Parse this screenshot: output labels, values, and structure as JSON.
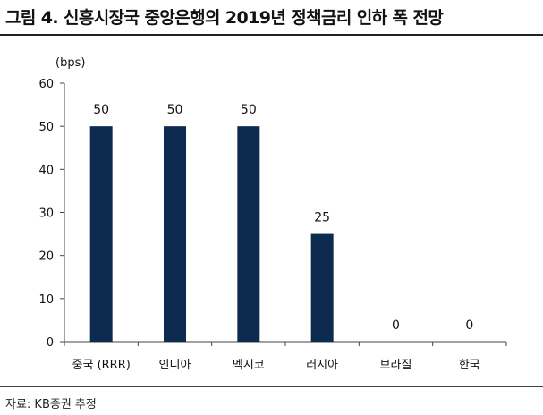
{
  "figure": {
    "title": "그림 4. 신흥시장국 중앙은행의 2019년 정책금리 인하 폭 전망",
    "source": "자료: KB증권 추정"
  },
  "colors": {
    "bar": "#0d2a4f",
    "axis": "#444444"
  },
  "chart_data": {
    "type": "bar",
    "unit_label": "(bps)",
    "categories": [
      "중국 (RRR)",
      "인디아",
      "멕시코",
      "러시아",
      "브라질",
      "한국"
    ],
    "values": [
      50,
      50,
      50,
      25,
      0,
      0
    ],
    "data_labels": [
      "50",
      "50",
      "50",
      "25",
      "0",
      "0"
    ],
    "ylim": [
      0,
      60
    ],
    "yticks": [
      0,
      10,
      20,
      30,
      40,
      50,
      60
    ],
    "grid": false,
    "legend": "none"
  }
}
